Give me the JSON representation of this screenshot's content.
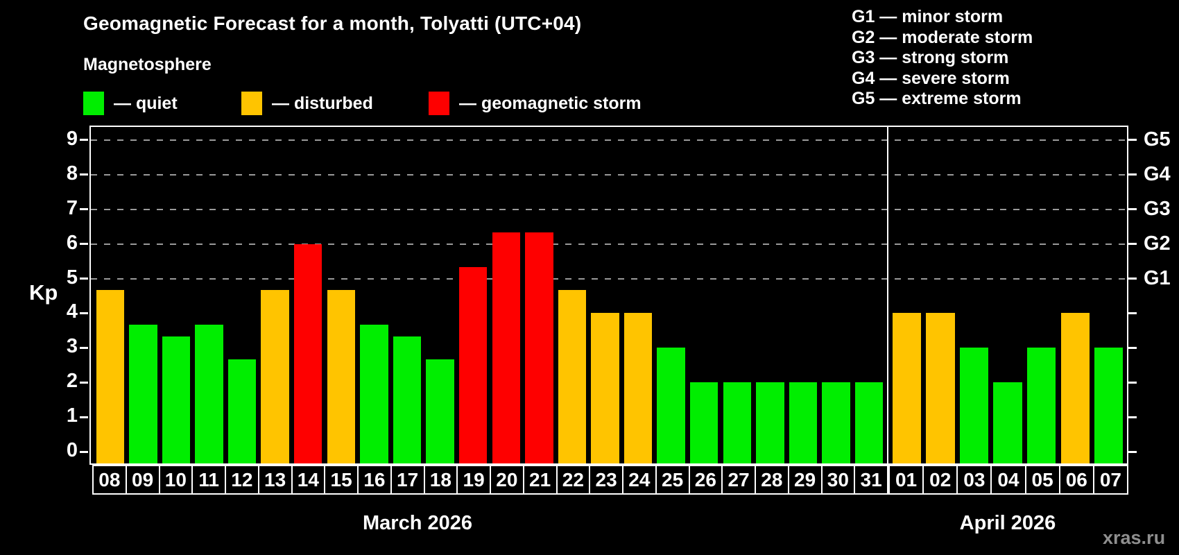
{
  "title": "Geomagnetic Forecast for a month, Tolyatti (UTC+04)",
  "subtitle": "Magnetosphere",
  "legend": {
    "items": [
      {
        "key": "quiet",
        "label": "— quiet"
      },
      {
        "key": "disturbed",
        "label": "— disturbed"
      },
      {
        "key": "storm",
        "label": "— geomagnetic storm"
      }
    ]
  },
  "g_legend": {
    "items": [
      "G1 — minor storm",
      "G2 — moderate storm",
      "G3 — strong storm",
      "G4 — severe storm",
      "G5 — extreme storm"
    ]
  },
  "y_axis": {
    "title": "Kp",
    "ticks": [
      "0",
      "1",
      "2",
      "3",
      "4",
      "5",
      "6",
      "7",
      "8",
      "9"
    ]
  },
  "watermark": "xras.ru",
  "chart_data": {
    "type": "bar",
    "ylabel": "Kp",
    "ylim": [
      0,
      9.4
    ],
    "grid": "dashed horizontal lines at Kp 5-9 only",
    "legend_position": "top",
    "right_axis_labels": [
      {
        "kp": 5,
        "label": "G1"
      },
      {
        "kp": 6,
        "label": "G2"
      },
      {
        "kp": 7,
        "label": "G3"
      },
      {
        "kp": 8,
        "label": "G4"
      },
      {
        "kp": 9,
        "label": "G5"
      }
    ],
    "status_colors": {
      "quiet": "#00EE00",
      "disturbed": "#FFC400",
      "storm": "#FE0000"
    },
    "months": [
      {
        "label": "March 2026",
        "days": [
          "08",
          "09",
          "10",
          "11",
          "12",
          "13",
          "14",
          "15",
          "16",
          "17",
          "18",
          "19",
          "20",
          "21",
          "22",
          "23",
          "24",
          "25",
          "26",
          "27",
          "28",
          "29",
          "30",
          "31"
        ],
        "values": [
          4.67,
          3.67,
          3.33,
          3.67,
          2.67,
          4.67,
          6.0,
          4.67,
          3.67,
          3.33,
          2.67,
          5.33,
          6.33,
          6.33,
          4.67,
          4.0,
          4.0,
          3.0,
          2.0,
          2.0,
          2.0,
          2.0,
          2.0,
          2.0
        ],
        "status": [
          "disturbed",
          "quiet",
          "quiet",
          "quiet",
          "quiet",
          "disturbed",
          "storm",
          "disturbed",
          "quiet",
          "quiet",
          "quiet",
          "storm",
          "storm",
          "storm",
          "disturbed",
          "disturbed",
          "disturbed",
          "quiet",
          "quiet",
          "quiet",
          "quiet",
          "quiet",
          "quiet",
          "quiet"
        ]
      },
      {
        "label": "April 2026",
        "days": [
          "01",
          "02",
          "03",
          "04",
          "05",
          "06",
          "07"
        ],
        "values": [
          4.0,
          4.0,
          3.0,
          2.0,
          3.0,
          4.0,
          3.0
        ],
        "status": [
          "disturbed",
          "disturbed",
          "quiet",
          "quiet",
          "quiet",
          "disturbed",
          "quiet"
        ]
      }
    ]
  }
}
